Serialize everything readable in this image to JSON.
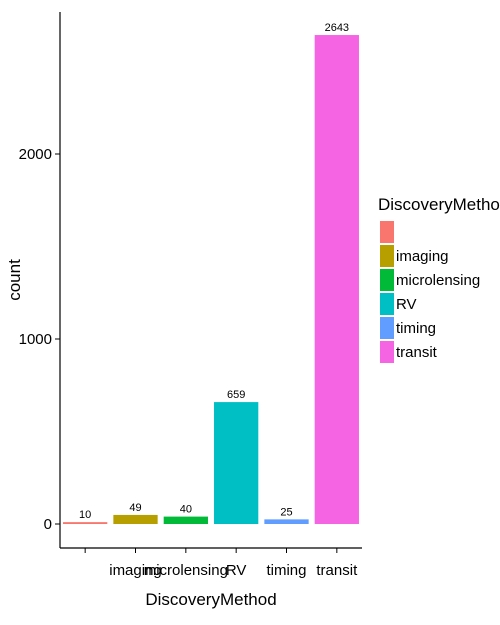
{
  "chart_data": {
    "type": "bar",
    "categories": [
      "",
      "imaging",
      "microlensing",
      "RV",
      "timing",
      "transit"
    ],
    "values": [
      10,
      49,
      40,
      659,
      25,
      2643
    ],
    "data_labels": [
      "10",
      "49",
      "40",
      "659",
      "25",
      "2643"
    ],
    "colors": [
      "#F8766D",
      "#B79F00",
      "#00BA38",
      "#00BFC4",
      "#619CFF",
      "#F564E3"
    ],
    "xlabel": "DiscoveryMethod",
    "ylabel": "count",
    "yticks": [
      0,
      1000,
      2000
    ],
    "ytick_labels": [
      "0",
      "1000",
      "2000"
    ],
    "ylim": [
      -100,
      2800
    ],
    "grid": false,
    "legend": {
      "title": "DiscoveryMethod",
      "position": "right",
      "entries": [
        "",
        "imaging",
        "microlensing",
        "RV",
        "timing",
        "transit"
      ]
    }
  }
}
